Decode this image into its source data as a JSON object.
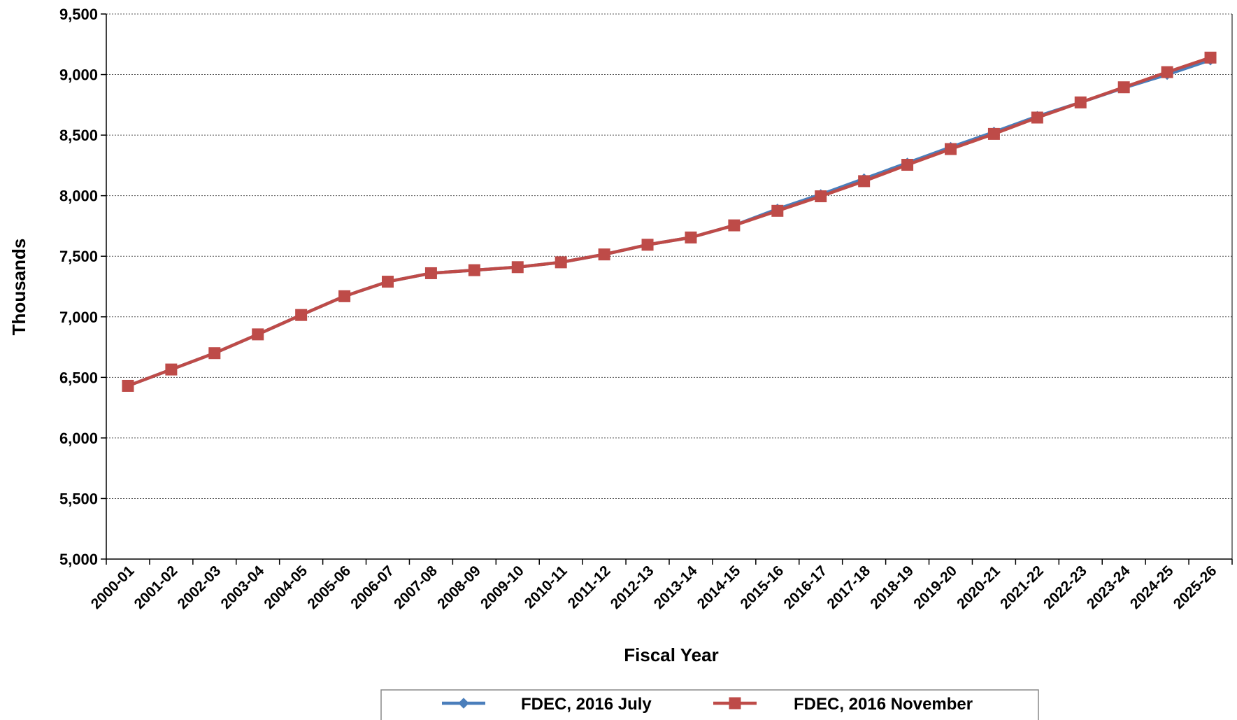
{
  "chart_data": {
    "type": "line",
    "xlabel": "Fiscal Year",
    "ylabel": "Thousands",
    "ylim": [
      5000,
      9500
    ],
    "yticks": [
      5000,
      5500,
      6000,
      6500,
      7000,
      7500,
      8000,
      8500,
      9000,
      9500
    ],
    "ytick_labels": [
      "5,000",
      "5,500",
      "6,000",
      "6,500",
      "7,000",
      "7,500",
      "8,000",
      "8,500",
      "9,000",
      "9,500"
    ],
    "grid": "horizontal dotted",
    "legend_position": "bottom",
    "categories": [
      "2000-01",
      "2001-02",
      "2002-03",
      "2003-04",
      "2004-05",
      "2005-06",
      "2006-07",
      "2007-08",
      "2008-09",
      "2009-10",
      "2010-11",
      "2011-12",
      "2012-13",
      "2013-14",
      "2014-15",
      "2015-16",
      "2016-17",
      "2017-18",
      "2018-19",
      "2019-20",
      "2020-21",
      "2021-22",
      "2022-23",
      "2023-24",
      "2024-25",
      "2025-26"
    ],
    "series": [
      {
        "name": "FDEC, 2016 July",
        "color": "#4a7ebb",
        "marker": "diamond",
        "values": [
          6430,
          6565,
          6700,
          6855,
          7015,
          7170,
          7290,
          7360,
          7385,
          7410,
          7450,
          7515,
          7595,
          7655,
          7755,
          7890,
          8010,
          8140,
          8270,
          8400,
          8525,
          8655,
          8770,
          8890,
          9000,
          9120
        ]
      },
      {
        "name": "FDEC, 2016 November",
        "color": "#be4b48",
        "marker": "square",
        "values": [
          6430,
          6565,
          6700,
          6855,
          7015,
          7170,
          7290,
          7360,
          7385,
          7410,
          7450,
          7515,
          7595,
          7655,
          7755,
          7875,
          7995,
          8120,
          8255,
          8385,
          8510,
          8645,
          8770,
          8895,
          9020,
          9140
        ]
      }
    ]
  }
}
